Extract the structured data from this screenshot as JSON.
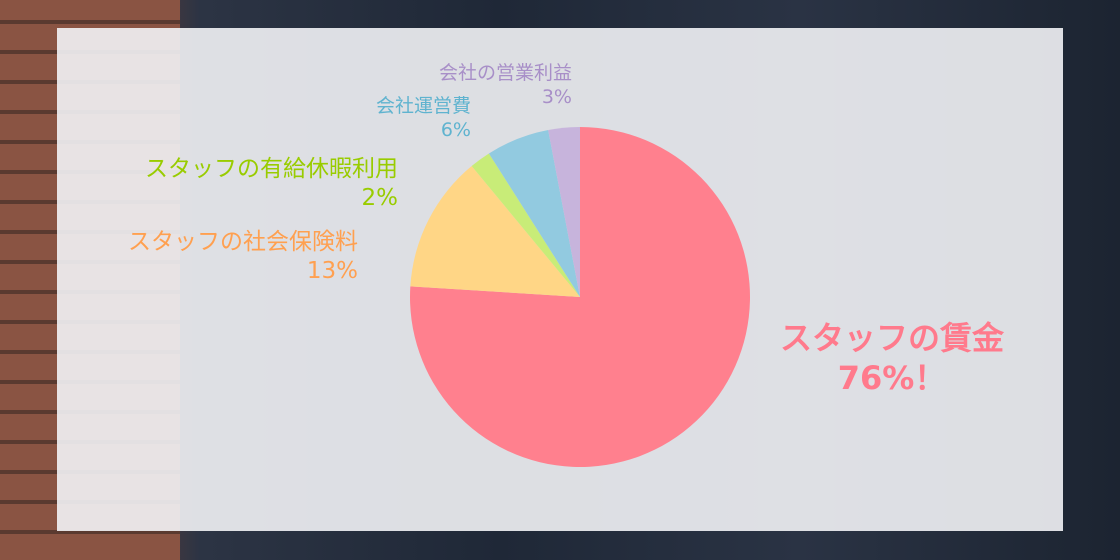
{
  "chart_data": {
    "type": "pie",
    "start": "top",
    "direction": "clockwise",
    "slices": [
      {
        "label": "スタッフの賃金",
        "value_label": "76%！",
        "value": 76,
        "color": "#ff808e"
      },
      {
        "label": "スタッフの社会保険料",
        "value_label": "13%",
        "value": 13,
        "color": "#ffd686"
      },
      {
        "label": "スタッフの有給休暇利用",
        "value_label": "2%",
        "value": 2,
        "color": "#c8ec78"
      },
      {
        "label": "会社運営費",
        "value_label": "6%",
        "value": 6,
        "color": "#92cae0"
      },
      {
        "label": "会社の営業利益",
        "value_label": "3%",
        "value": 3,
        "color": "#c7b4dc"
      }
    ],
    "label_colors": [
      "#ff7a8c",
      "#ffa050",
      "#99cc00",
      "#5fb3cf",
      "#a88fc8"
    ]
  }
}
